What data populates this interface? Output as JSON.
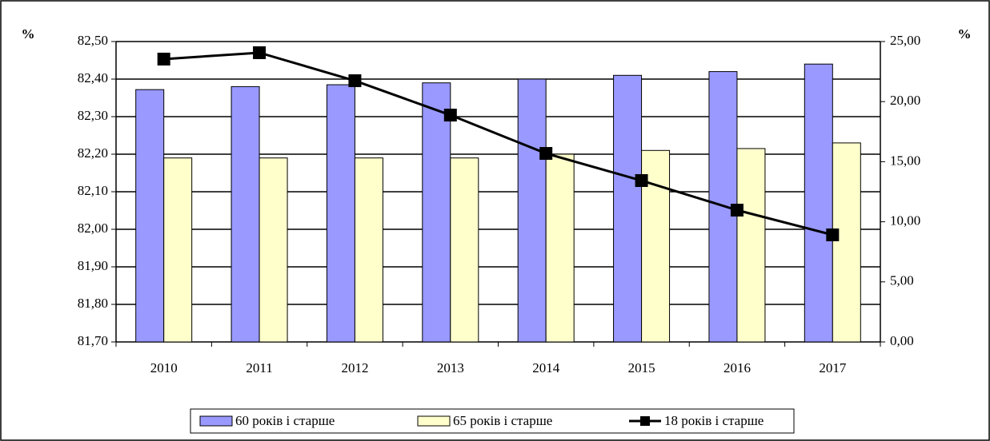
{
  "chart_data": {
    "type": "bar_line",
    "y_label": "%",
    "y2_label": "%",
    "categories": [
      "2010",
      "2011",
      "2012",
      "2013",
      "2014",
      "2015",
      "2016",
      "2017"
    ],
    "series": [
      {
        "name": "60 років і старше",
        "color": "#9999ff",
        "type": "bar",
        "values": [
          82.372,
          82.38,
          82.385,
          82.39,
          82.4,
          82.41,
          82.42,
          82.44
        ]
      },
      {
        "name": "65 років і старше",
        "color": "#ffffcc",
        "type": "bar",
        "values": [
          82.19,
          82.19,
          82.19,
          82.19,
          82.2,
          82.21,
          82.215,
          82.23
        ]
      },
      {
        "name": "18 років і старше",
        "color": "#000000",
        "type": "line",
        "axis": "y2",
        "values": [
          23.54,
          24.07,
          21.74,
          18.88,
          15.69,
          13.43,
          10.97,
          8.91
        ]
      }
    ],
    "ylim": [
      81.7,
      82.5
    ],
    "yticks": [
      {
        "value": 81.7,
        "label": "81,70"
      },
      {
        "value": 81.8,
        "label": "81,80"
      },
      {
        "value": 81.9,
        "label": "81,90"
      },
      {
        "value": 82.0,
        "label": "82,00"
      },
      {
        "value": 82.1,
        "label": "82,10"
      },
      {
        "value": 82.2,
        "label": "82,20"
      },
      {
        "value": 82.3,
        "label": "82,30"
      },
      {
        "value": 82.4,
        "label": "82,40"
      },
      {
        "value": 82.5,
        "label": "82,50"
      }
    ],
    "y2lim": [
      0,
      25
    ],
    "y2ticks": [
      {
        "value": 0,
        "label": "0,00"
      },
      {
        "value": 5,
        "label": "5,00"
      },
      {
        "value": 10,
        "label": "10,00"
      },
      {
        "value": 15,
        "label": "15,00"
      },
      {
        "value": 20,
        "label": "20,00"
      },
      {
        "value": 25,
        "label": "25,00"
      }
    ],
    "grid": true,
    "legend": "bottom"
  }
}
